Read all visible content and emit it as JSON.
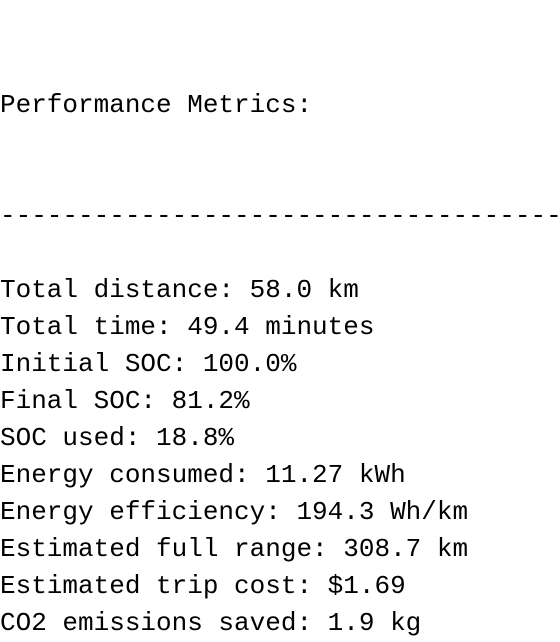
{
  "output": {
    "title": "Performance Metrics:",
    "separator": "------------------------------------",
    "lines": [
      "Total distance: 58.0 km",
      "Total time: 49.4 minutes",
      "Initial SOC: 100.0%",
      "Final SOC: 81.2%",
      "SOC used: 18.8%",
      "Energy consumed: 11.27 kWh",
      "Energy efficiency: 194.3 Wh/km",
      "Estimated full range: 308.7 km",
      "Estimated trip cost: $1.69",
      "CO2 emissions saved: 1.9 kg"
    ]
  }
}
